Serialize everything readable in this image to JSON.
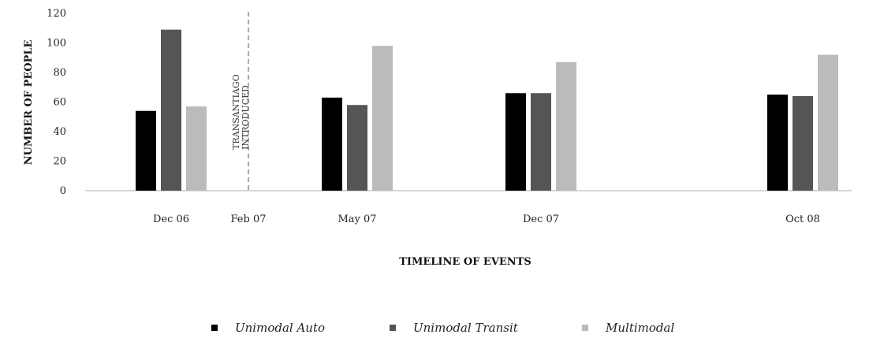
{
  "chart_data": {
    "type": "bar",
    "title": "",
    "xlabel": "TIMELINE OF EVENTS",
    "ylabel": "NUMBER OF PEOPLE",
    "ylim": [
      0,
      120
    ],
    "yticks": [
      0,
      20,
      40,
      60,
      80,
      100,
      120
    ],
    "x_tick_labels": [
      "Dec 06",
      "Feb 07",
      "May 07",
      "Dec 07",
      "Oct 08"
    ],
    "categories": [
      "Dec 06",
      "May 07",
      "Dec 07",
      "Oct 08"
    ],
    "series": [
      {
        "name": "Unimodal Auto",
        "color": "#000000",
        "values": [
          54,
          63,
          66,
          65
        ]
      },
      {
        "name": "Unimodal Transit",
        "color": "#555555",
        "values": [
          109,
          58,
          66,
          64
        ]
      },
      {
        "name": "Multimodal",
        "color": "#bbbbbb",
        "values": [
          57,
          98,
          87,
          92
        ]
      }
    ],
    "annotation": {
      "at": "Feb 07",
      "line_style": "dashed",
      "text_lines": [
        "TRANSANTIAGO",
        "INTRODUCED"
      ]
    },
    "grid": false,
    "legend_position": "bottom"
  }
}
